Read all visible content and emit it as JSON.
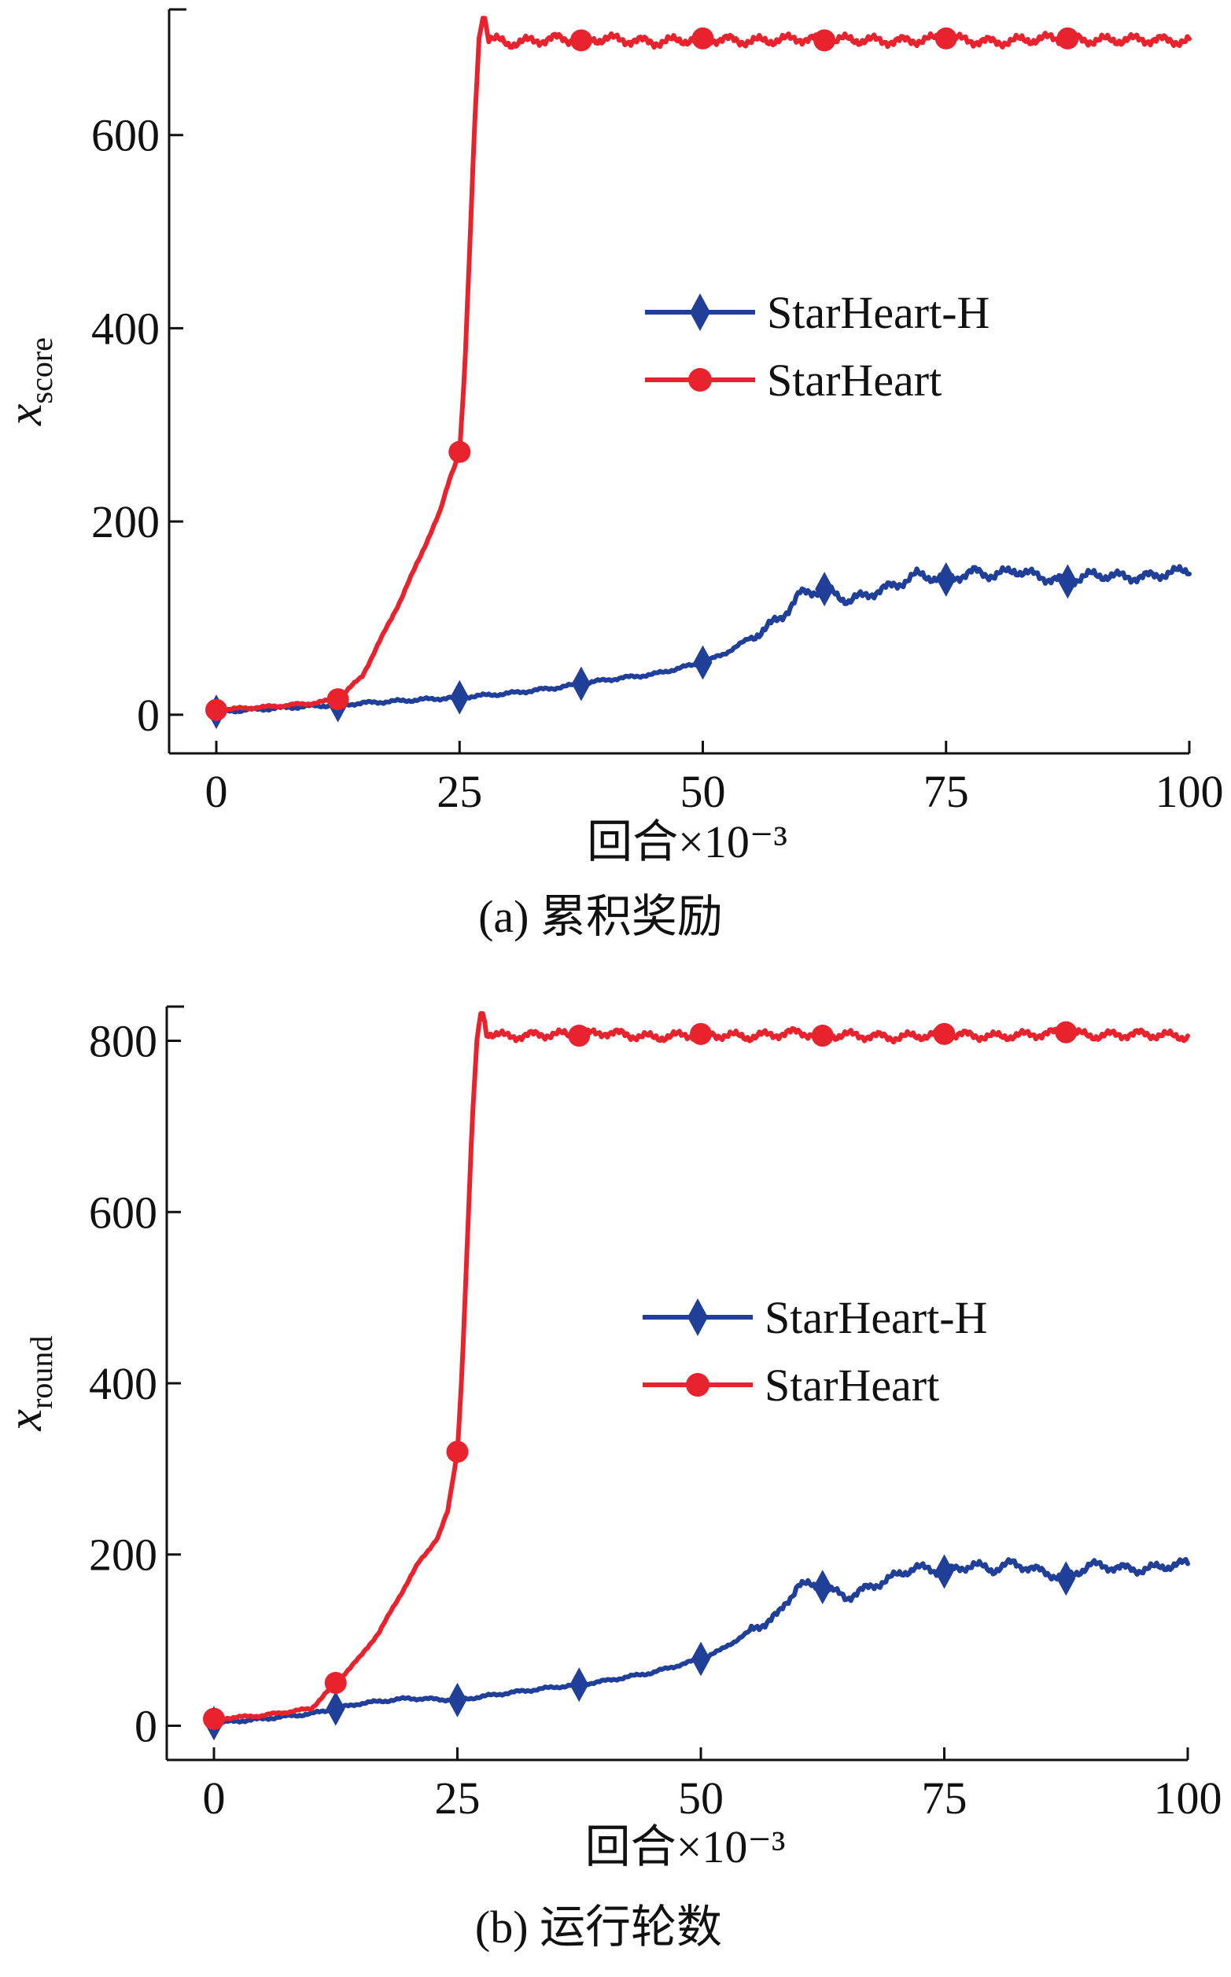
{
  "chart_data": [
    {
      "type": "line",
      "caption": "(a) 累积奖励",
      "xlabel": "回合×10⁻³",
      "ylabel": {
        "main": "x",
        "sub": "score"
      },
      "xlim": [
        0,
        100
      ],
      "ylim": [
        -40,
        730
      ],
      "xticks": [
        0,
        25,
        50,
        75,
        100
      ],
      "yticks": [
        0,
        200,
        400,
        600
      ],
      "legend_position": "center-right",
      "series": [
        {
          "name": "StarHeart-H",
          "color": "#1f3f99",
          "marker": "diamond",
          "x": [
            0,
            5,
            10,
            12.5,
            15,
            20,
            25,
            30,
            35,
            37.5,
            40,
            45,
            50,
            52,
            55,
            58,
            60,
            62.5,
            65,
            68,
            70,
            72,
            75,
            78,
            80,
            82,
            85,
            87.5,
            90,
            95,
            100
          ],
          "y": [
            3,
            6,
            9,
            10,
            12,
            15,
            18,
            22,
            28,
            32,
            36,
            42,
            54,
            62,
            80,
            100,
            125,
            130,
            118,
            128,
            135,
            145,
            140,
            148,
            144,
            150,
            142,
            138,
            145,
            142,
            150
          ],
          "markers_x": [
            0,
            12.5,
            25,
            37.5,
            50,
            62.5,
            75,
            87.5
          ]
        },
        {
          "name": "StarHeart",
          "color": "#e8232e",
          "marker": "circle",
          "x": [
            0,
            5,
            10,
            12.5,
            15,
            17,
            19,
            21,
            23,
            24,
            25,
            25.5,
            26,
            26.5,
            27,
            27.5,
            28,
            30,
            35,
            37.5,
            40,
            45,
            50,
            55,
            60,
            62.5,
            65,
            70,
            75,
            80,
            85,
            87.5,
            90,
            95,
            100
          ],
          "y": [
            5,
            8,
            12,
            16,
            40,
            80,
            120,
            165,
            210,
            245,
            272,
            350,
            470,
            600,
            700,
            728,
            700,
            695,
            700,
            698,
            700,
            696,
            700,
            697,
            700,
            698,
            699,
            697,
            700,
            696,
            700,
            700,
            698,
            699,
            697
          ],
          "markers_x": [
            0,
            12.5,
            25,
            37.5,
            50,
            62.5,
            75,
            87.5
          ]
        }
      ]
    },
    {
      "type": "line",
      "caption": "(b) 运行轮数",
      "xlabel": "回合×10⁻³",
      "ylabel": {
        "main": "x",
        "sub": "round"
      },
      "xlim": [
        0,
        100
      ],
      "ylim": [
        -40,
        840
      ],
      "xticks": [
        0,
        25,
        50,
        75,
        100
      ],
      "yticks": [
        0,
        200,
        400,
        600,
        800
      ],
      "legend_position": "center-right",
      "series": [
        {
          "name": "StarHeart-H",
          "color": "#1f3f99",
          "marker": "diamond",
          "x": [
            0,
            5,
            10,
            12.5,
            15,
            20,
            25,
            30,
            35,
            37.5,
            40,
            45,
            50,
            52,
            55,
            58,
            60,
            62.5,
            65,
            68,
            70,
            72,
            75,
            78,
            80,
            82,
            85,
            87.5,
            90,
            95,
            100
          ],
          "y": [
            3,
            8,
            14,
            20,
            26,
            32,
            30,
            38,
            45,
            48,
            52,
            62,
            78,
            88,
            110,
            130,
            165,
            162,
            150,
            165,
            175,
            185,
            180,
            188,
            182,
            190,
            180,
            172,
            188,
            182,
            190
          ],
          "markers_x": [
            0,
            12.5,
            25,
            37.5,
            50,
            62.5,
            75,
            87.5
          ]
        },
        {
          "name": "StarHeart",
          "color": "#e8232e",
          "marker": "circle",
          "x": [
            0,
            5,
            10,
            12.5,
            15,
            17,
            19,
            21,
            23,
            24,
            25,
            25.5,
            26,
            26.5,
            27,
            27.5,
            28,
            30,
            35,
            37.5,
            40,
            45,
            50,
            55,
            60,
            62.5,
            65,
            70,
            75,
            80,
            85,
            87.5,
            90,
            95,
            100
          ],
          "y": [
            8,
            12,
            20,
            50,
            80,
            110,
            150,
            190,
            220,
            250,
            320,
            420,
            560,
            700,
            800,
            840,
            810,
            805,
            808,
            806,
            810,
            804,
            808,
            805,
            810,
            806,
            807,
            804,
            808,
            805,
            808,
            810,
            806,
            808,
            805
          ],
          "markers_x": [
            0,
            12.5,
            25,
            37.5,
            50,
            62.5,
            75,
            87.5
          ]
        }
      ]
    }
  ]
}
